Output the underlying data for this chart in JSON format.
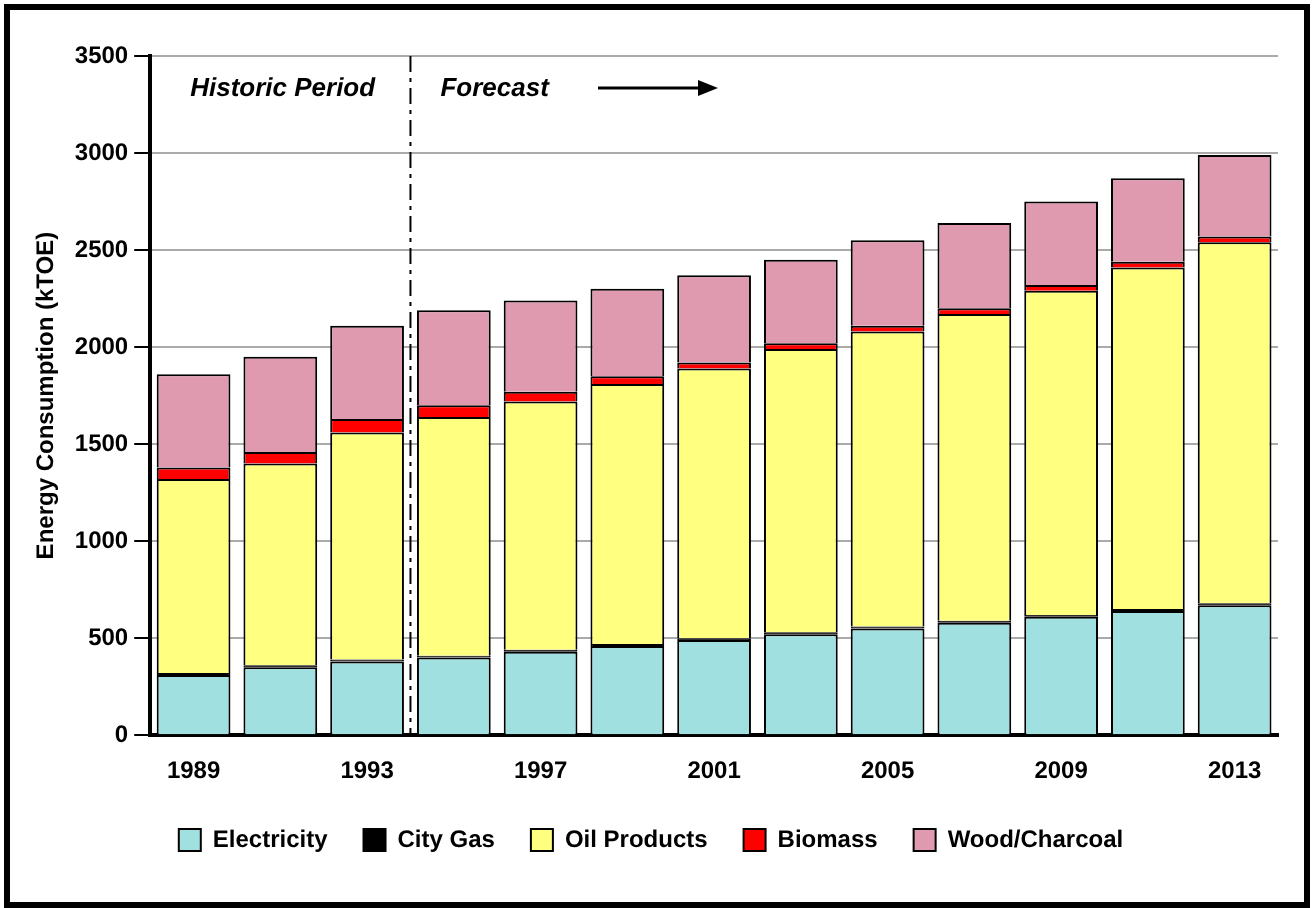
{
  "chart_data": {
    "type": "bar",
    "stacked": true,
    "ylabel": "Energy Consumption (kTOE)",
    "x": [
      1989,
      1991,
      1993,
      1995,
      1997,
      1999,
      2001,
      2003,
      2005,
      2007,
      2009,
      2011,
      2013
    ],
    "xlim": [
      1988,
      2014
    ],
    "xticks": [
      1989,
      1993,
      1997,
      2001,
      2005,
      2009,
      2013
    ],
    "ylim": [
      0,
      3500
    ],
    "yticks": [
      0,
      500,
      1000,
      1500,
      2000,
      2500,
      3000,
      3500
    ],
    "grid": "y",
    "legend": "bottom",
    "ref_lines": [
      {
        "axis": "x",
        "value": 1994,
        "line_style": "dashed",
        "color": "#000000"
      }
    ],
    "annotations": [
      "Historic Period",
      "Forecast"
    ],
    "series": [
      {
        "name": "Electricity",
        "color": "#a0e0e0",
        "values": [
          310,
          350,
          380,
          400,
          430,
          460,
          490,
          520,
          550,
          580,
          610,
          640,
          670
        ]
      },
      {
        "name": "City Gas",
        "color": "#000000",
        "values": [
          10,
          10,
          10,
          10,
          10,
          10,
          10,
          10,
          10,
          10,
          10,
          10,
          10
        ]
      },
      {
        "name": "Oil Products",
        "color": "#ffff80",
        "values": [
          1000,
          1040,
          1170,
          1230,
          1280,
          1340,
          1390,
          1460,
          1520,
          1580,
          1670,
          1760,
          1860
        ]
      },
      {
        "name": "Biomass",
        "color": "#ff0000",
        "values": [
          60,
          60,
          70,
          60,
          50,
          40,
          30,
          30,
          30,
          30,
          30,
          30,
          30
        ]
      },
      {
        "name": "Wood/Charcoal",
        "color": "#e09ab0",
        "values": [
          480,
          490,
          480,
          490,
          470,
          450,
          450,
          430,
          440,
          440,
          430,
          430,
          420
        ]
      }
    ]
  }
}
